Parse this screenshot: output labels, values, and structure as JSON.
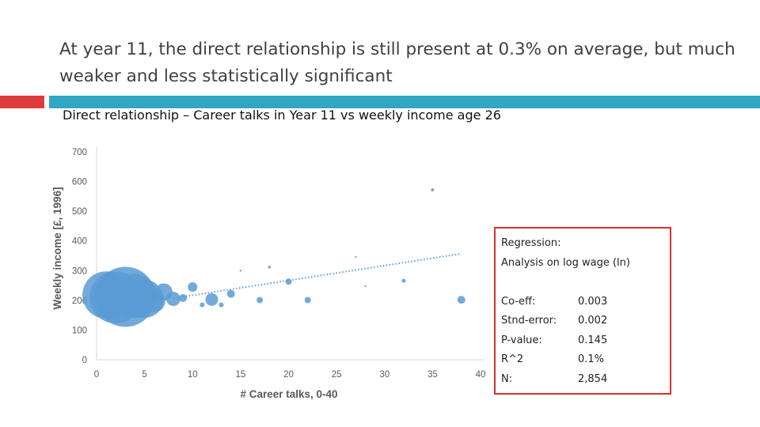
{
  "title": "At year 11, the direct relationship is still present at 0.3% on average, but much weaker and less statistically significant",
  "subtitle": "Direct relationship – Career talks in Year 11 vs weekly income age 26",
  "colors": {
    "accent_red": "#e03b3b",
    "accent_teal": "#31a7c3",
    "bubble": "#5b9bd5",
    "box_border": "#d9302c"
  },
  "regression": {
    "header": "Regression:",
    "analysis": "Analysis on log wage (ln)",
    "rows": [
      {
        "label": "Co-eff:",
        "value": "0.003"
      },
      {
        "label": "Stnd-error:",
        "value": "0.002"
      },
      {
        "label": "P-value:",
        "value": "0.145"
      },
      {
        "label": "R^2",
        "value": "0.1%"
      },
      {
        "label": "N:",
        "value": "2,854"
      }
    ]
  },
  "chart_data": {
    "type": "scatter",
    "title": "",
    "xlabel": "# Career talks, 0-40",
    "ylabel": "Weekly income [£, 1996]",
    "xlim": [
      0,
      40
    ],
    "ylim": [
      0,
      700
    ],
    "xticks": [
      0,
      5,
      10,
      15,
      20,
      25,
      30,
      35,
      40
    ],
    "yticks": [
      0,
      100,
      200,
      300,
      400,
      500,
      600,
      700
    ],
    "grid": false,
    "legend": "none",
    "series": [
      {
        "points": [
          {
            "x": 1,
            "y": 218,
            "size": 30
          },
          {
            "x": 2,
            "y": 210,
            "size": 33
          },
          {
            "x": 3,
            "y": 212,
            "size": 38
          },
          {
            "x": 4,
            "y": 215,
            "size": 28
          },
          {
            "x": 5,
            "y": 205,
            "size": 24
          },
          {
            "x": 6,
            "y": 197,
            "size": 14
          },
          {
            "x": 7,
            "y": 228,
            "size": 11
          },
          {
            "x": 8,
            "y": 205,
            "size": 9
          },
          {
            "x": 9,
            "y": 208,
            "size": 5
          },
          {
            "x": 10,
            "y": 245,
            "size": 6
          },
          {
            "x": 11,
            "y": 185,
            "size": 3
          },
          {
            "x": 12,
            "y": 203,
            "size": 8
          },
          {
            "x": 13,
            "y": 185,
            "size": 3
          },
          {
            "x": 14,
            "y": 222,
            "size": 5
          },
          {
            "x": 15,
            "y": 300,
            "size": 1.2
          },
          {
            "x": 17,
            "y": 201,
            "size": 4
          },
          {
            "x": 18,
            "y": 312,
            "size": 1.8
          },
          {
            "x": 20,
            "y": 263,
            "size": 4
          },
          {
            "x": 22,
            "y": 201,
            "size": 4
          },
          {
            "x": 27,
            "y": 346,
            "size": 1.2
          },
          {
            "x": 28,
            "y": 248,
            "size": 1.2
          },
          {
            "x": 32,
            "y": 266,
            "size": 2.5
          },
          {
            "x": 35,
            "y": 572,
            "size": 2
          },
          {
            "x": 38,
            "y": 202,
            "size": 5
          }
        ]
      }
    ],
    "trendline": {
      "style": "dotted",
      "x": [
        8,
        38
      ],
      "y": [
        207,
        357
      ]
    }
  }
}
